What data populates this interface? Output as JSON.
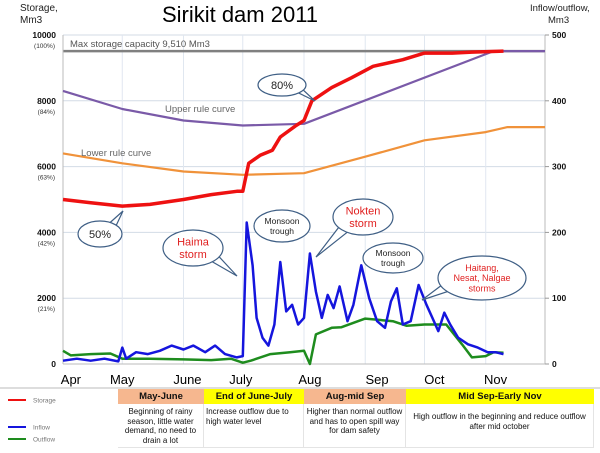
{
  "chart_data": {
    "type": "line",
    "title": "Sirikit dam 2011",
    "ylabel_left": "Storage, Mm3",
    "ylabel_right": "Inflow/outflow, Mm3",
    "ylim_left": [
      0,
      10000
    ],
    "ylim_right": [
      0,
      500
    ],
    "xlim": [
      "2011-04-01",
      "2011-12-01"
    ],
    "grid": true,
    "x_ticks": [
      {
        "label": "Apr",
        "date": "2011-04-05"
      },
      {
        "label": "May",
        "date": "2011-05-01"
      },
      {
        "label": "June",
        "date": "2011-06-03"
      },
      {
        "label": "July",
        "date": "2011-06-30"
      },
      {
        "label": "Aug",
        "date": "2011-08-04"
      },
      {
        "label": "Sep",
        "date": "2011-09-07"
      },
      {
        "label": "Oct",
        "date": "2011-10-06"
      },
      {
        "label": "Nov",
        "date": "2011-11-06"
      }
    ],
    "y_ticks_left": [
      {
        "value": 10000,
        "label": "10000",
        "pct": "(100%)"
      },
      {
        "value": 8000,
        "label": "8000",
        "pct": "(84%)"
      },
      {
        "value": 6000,
        "label": "6000",
        "pct": "(63%)"
      },
      {
        "value": 4000,
        "label": "4000",
        "pct": "(42%)"
      },
      {
        "value": 2000,
        "label": "2000",
        "pct": "(21%)"
      },
      {
        "value": 0,
        "label": "0",
        "pct": ""
      }
    ],
    "y_ticks_right": [
      {
        "value": 500,
        "label": "500"
      },
      {
        "value": 400,
        "label": "400"
      },
      {
        "value": 300,
        "label": "300"
      },
      {
        "value": 200,
        "label": "200"
      },
      {
        "value": 100,
        "label": "100"
      },
      {
        "value": 0,
        "label": "0"
      }
    ],
    "max_capacity": {
      "value": 9510,
      "label": "Max storage capacity 9,510 Mm3",
      "color": "#808080"
    },
    "series": [
      {
        "name": "Storage",
        "axis": "left",
        "color": "#ee1111",
        "points": [
          [
            "2011-04-01",
            5000
          ],
          [
            "2011-04-15",
            4900
          ],
          [
            "2011-05-01",
            4800
          ],
          [
            "2011-05-15",
            4850
          ],
          [
            "2011-06-01",
            5000
          ],
          [
            "2011-06-15",
            5150
          ],
          [
            "2011-06-28",
            5250
          ],
          [
            "2011-07-01",
            5250
          ],
          [
            "2011-07-04",
            6100
          ],
          [
            "2011-07-10",
            6350
          ],
          [
            "2011-07-16",
            6500
          ],
          [
            "2011-07-20",
            6900
          ],
          [
            "2011-07-28",
            7250
          ],
          [
            "2011-08-01",
            7400
          ],
          [
            "2011-08-05",
            8000
          ],
          [
            "2011-08-15",
            8400
          ],
          [
            "2011-08-25",
            8700
          ],
          [
            "2011-09-05",
            9050
          ],
          [
            "2011-09-20",
            9250
          ],
          [
            "2011-10-01",
            9450
          ],
          [
            "2011-10-15",
            9450
          ],
          [
            "2011-10-25",
            9480
          ],
          [
            "2011-11-10",
            9510
          ]
        ]
      },
      {
        "name": "Upper rule curve",
        "axis": "left",
        "color": "#7a5aa8",
        "points": [
          [
            "2011-04-01",
            8300
          ],
          [
            "2011-05-01",
            7750
          ],
          [
            "2011-06-01",
            7400
          ],
          [
            "2011-07-01",
            7250
          ],
          [
            "2011-08-01",
            7300
          ],
          [
            "2011-11-05",
            9510
          ],
          [
            "2011-12-01",
            9510
          ]
        ]
      },
      {
        "name": "Lower rule curve",
        "axis": "left",
        "color": "#f0923a",
        "points": [
          [
            "2011-04-01",
            6400
          ],
          [
            "2011-05-01",
            6100
          ],
          [
            "2011-06-01",
            5850
          ],
          [
            "2011-07-01",
            5750
          ],
          [
            "2011-08-01",
            5800
          ],
          [
            "2011-09-01",
            6300
          ],
          [
            "2011-10-01",
            6800
          ],
          [
            "2011-11-01",
            7050
          ],
          [
            "2011-11-12",
            7200
          ],
          [
            "2011-12-01",
            7200
          ]
        ]
      },
      {
        "name": "Inflow",
        "axis": "right",
        "color": "#1515dd",
        "points": [
          [
            "2011-04-01",
            5
          ],
          [
            "2011-04-08",
            8
          ],
          [
            "2011-04-15",
            5
          ],
          [
            "2011-04-22",
            8
          ],
          [
            "2011-04-29",
            4
          ],
          [
            "2011-05-01",
            25
          ],
          [
            "2011-05-03",
            8
          ],
          [
            "2011-05-08",
            18
          ],
          [
            "2011-05-14",
            15
          ],
          [
            "2011-05-20",
            20
          ],
          [
            "2011-05-26",
            28
          ],
          [
            "2011-06-01",
            22
          ],
          [
            "2011-06-06",
            28
          ],
          [
            "2011-06-12",
            18
          ],
          [
            "2011-06-17",
            28
          ],
          [
            "2011-06-22",
            15
          ],
          [
            "2011-06-28",
            10
          ],
          [
            "2011-07-01",
            12
          ],
          [
            "2011-07-03",
            215
          ],
          [
            "2011-07-06",
            150
          ],
          [
            "2011-07-08",
            70
          ],
          [
            "2011-07-11",
            40
          ],
          [
            "2011-07-14",
            28
          ],
          [
            "2011-07-17",
            60
          ],
          [
            "2011-07-20",
            155
          ],
          [
            "2011-07-23",
            80
          ],
          [
            "2011-07-26",
            90
          ],
          [
            "2011-07-29",
            60
          ],
          [
            "2011-08-01",
            70
          ],
          [
            "2011-08-04",
            168
          ],
          [
            "2011-08-07",
            110
          ],
          [
            "2011-08-10",
            70
          ],
          [
            "2011-08-13",
            105
          ],
          [
            "2011-08-16",
            85
          ],
          [
            "2011-08-19",
            118
          ],
          [
            "2011-08-23",
            65
          ],
          [
            "2011-08-26",
            90
          ],
          [
            "2011-08-30",
            150
          ],
          [
            "2011-09-03",
            100
          ],
          [
            "2011-09-07",
            65
          ],
          [
            "2011-09-11",
            55
          ],
          [
            "2011-09-14",
            95
          ],
          [
            "2011-09-17",
            115
          ],
          [
            "2011-09-20",
            60
          ],
          [
            "2011-09-24",
            65
          ],
          [
            "2011-09-28",
            120
          ],
          [
            "2011-10-02",
            90
          ],
          [
            "2011-10-05",
            70
          ],
          [
            "2011-10-08",
            50
          ],
          [
            "2011-10-11",
            78
          ],
          [
            "2011-10-14",
            60
          ],
          [
            "2011-10-18",
            40
          ],
          [
            "2011-10-23",
            30
          ],
          [
            "2011-10-28",
            25
          ],
          [
            "2011-11-02",
            18
          ],
          [
            "2011-11-06",
            18
          ],
          [
            "2011-11-10",
            15
          ]
        ]
      },
      {
        "name": "Outflow",
        "axis": "right",
        "color": "#1e8c1e",
        "points": [
          [
            "2011-04-01",
            20
          ],
          [
            "2011-04-05",
            13
          ],
          [
            "2011-04-15",
            15
          ],
          [
            "2011-04-25",
            16
          ],
          [
            "2011-05-01",
            8
          ],
          [
            "2011-05-15",
            8
          ],
          [
            "2011-06-01",
            7
          ],
          [
            "2011-06-15",
            6
          ],
          [
            "2011-06-25",
            8
          ],
          [
            "2011-07-01",
            2
          ],
          [
            "2011-07-05",
            5
          ],
          [
            "2011-07-15",
            15
          ],
          [
            "2011-07-25",
            18
          ],
          [
            "2011-08-01",
            20
          ],
          [
            "2011-08-04",
            0
          ],
          [
            "2011-08-07",
            45
          ],
          [
            "2011-08-15",
            55
          ],
          [
            "2011-08-20",
            56
          ],
          [
            "2011-09-01",
            69
          ],
          [
            "2011-09-15",
            65
          ],
          [
            "2011-09-22",
            58
          ],
          [
            "2011-10-01",
            60
          ],
          [
            "2011-10-12",
            60
          ],
          [
            "2011-10-20",
            30
          ],
          [
            "2011-10-25",
            10
          ],
          [
            "2011-11-01",
            12
          ],
          [
            "2011-11-05",
            18
          ],
          [
            "2011-11-10",
            17
          ]
        ]
      }
    ],
    "annotations": [
      {
        "lines": [
          "80%"
        ],
        "color": "#222222"
      },
      {
        "lines": [
          "50%"
        ],
        "color": "#222222"
      },
      {
        "lines": [
          "Haima",
          "storm"
        ],
        "color": "#e02020"
      },
      {
        "lines": [
          "Monsoon",
          "trough"
        ],
        "color": "#222222"
      },
      {
        "lines": [
          "Nokten",
          "storm"
        ],
        "color": "#e02020"
      },
      {
        "lines": [
          "Monsoon",
          "trough"
        ],
        "color": "#222222"
      },
      {
        "lines": [
          "Haitang,",
          "Nesat, Nalgae",
          "storms"
        ],
        "color": "#e02020"
      }
    ],
    "curve_labels": {
      "upper": "Upper rule curve",
      "lower": "Lower rule curve"
    },
    "legend": {
      "placement": "bottom-left",
      "items": [
        {
          "label": "Storage",
          "color": "#ee1111"
        },
        {
          "label": "Inflow",
          "color": "#1515dd"
        },
        {
          "label": "Outflow",
          "color": "#1e8c1e"
        }
      ]
    }
  },
  "table": {
    "periods": [
      {
        "header": "May-June",
        "color": "#f6b78f",
        "text": "Beginning of rainy season, little water demand, no need to drain a lot"
      },
      {
        "header": "End of June-July",
        "color": "#ffff00",
        "text": "Increase outflow due to high water level"
      },
      {
        "header": "Aug-mid Sep",
        "color": "#f6b78f",
        "text": "Higher than normal outflow and has to open spill way for dam safety"
      },
      {
        "header": "Mid Sep-Early Nov",
        "color": "#ffff00",
        "text": "High outflow in the beginning and reduce outflow after mid october"
      }
    ]
  }
}
